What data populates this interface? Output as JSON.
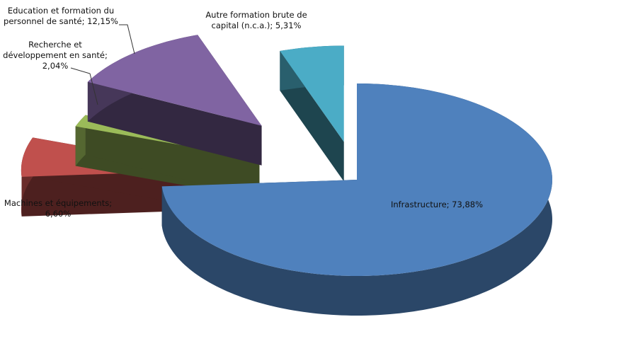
{
  "chart_data": {
    "type": "pie3d",
    "values": [
      73.88,
      6.6,
      2.04,
      12.15,
      5.31
    ],
    "value_labels": [
      "Infrastructure; 73,88%",
      "Machines et équipements; 6,60%",
      "Recherche et développement en santé; 2,04%",
      "Education et formation du personnel de santé; 12,15%",
      "Autre formation brute de capital (n.c.a.); 5,31%"
    ],
    "colors": [
      "#4f81bd",
      "#c0504d",
      "#9bbb59",
      "#8064a2",
      "#4bacc6"
    ]
  }
}
